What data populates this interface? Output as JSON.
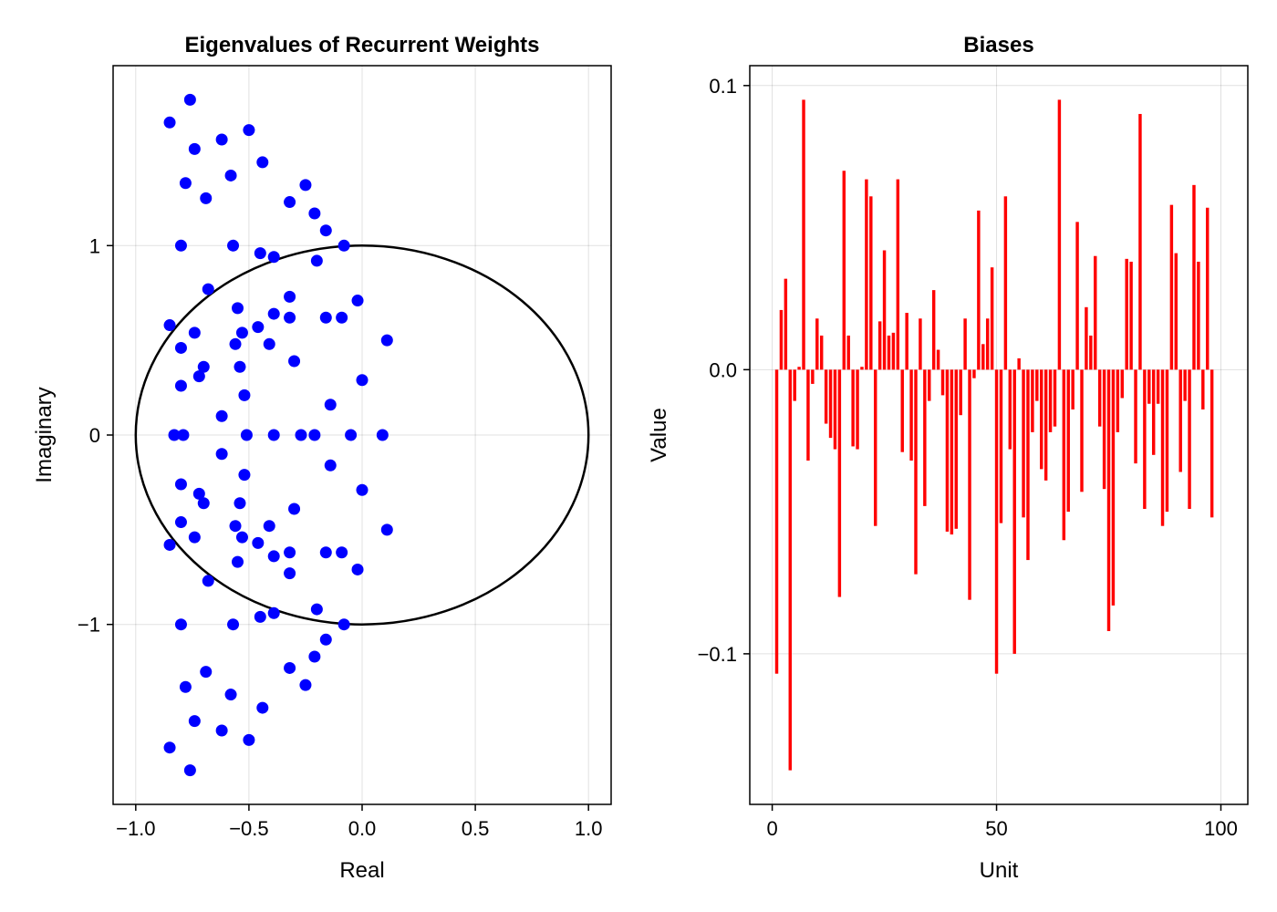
{
  "chart_data": [
    {
      "type": "scatter",
      "title": "Eigenvalues of Recurrent Weights",
      "xlabel": "Real",
      "ylabel": "Imaginary",
      "xlim": [
        -1.1,
        1.1
      ],
      "ylim": [
        -1.95,
        1.95
      ],
      "xticks": [
        -1.0,
        -0.5,
        0.0,
        0.5,
        1.0
      ],
      "xtick_labels": [
        "−1.0",
        "−0.5",
        "0.0",
        "0.5",
        "1.0"
      ],
      "yticks": [
        -1,
        0,
        1
      ],
      "ytick_labels": [
        "−1",
        "0",
        "1"
      ],
      "grid": true,
      "point_color": "#0000ff",
      "circle_color": "#000000",
      "unit_circle": {
        "center": [
          0,
          0
        ],
        "radius": 1
      },
      "points_upper": [
        [
          -0.85,
          1.65
        ],
        [
          -0.76,
          1.77
        ],
        [
          -0.74,
          1.51
        ],
        [
          -0.62,
          1.56
        ],
        [
          -0.5,
          1.61
        ],
        [
          -0.78,
          1.33
        ],
        [
          -0.69,
          1.25
        ],
        [
          -0.58,
          1.37
        ],
        [
          -0.44,
          1.44
        ],
        [
          -0.32,
          1.23
        ],
        [
          -0.25,
          1.32
        ],
        [
          -0.21,
          1.17
        ],
        [
          -0.16,
          1.08
        ],
        [
          -0.8,
          1.0
        ],
        [
          -0.57,
          1.0
        ],
        [
          -0.45,
          0.96
        ],
        [
          -0.39,
          0.94
        ],
        [
          -0.2,
          0.92
        ],
        [
          -0.08,
          1.0
        ],
        [
          -0.68,
          0.77
        ],
        [
          -0.55,
          0.67
        ],
        [
          -0.32,
          0.73
        ],
        [
          -0.02,
          0.71
        ],
        [
          -0.85,
          0.58
        ],
        [
          -0.74,
          0.54
        ],
        [
          -0.53,
          0.54
        ],
        [
          -0.46,
          0.57
        ],
        [
          -0.39,
          0.64
        ],
        [
          -0.32,
          0.62
        ],
        [
          -0.16,
          0.62
        ],
        [
          -0.09,
          0.62
        ],
        [
          0.11,
          0.5
        ],
        [
          -0.8,
          0.46
        ],
        [
          -0.56,
          0.48
        ],
        [
          -0.41,
          0.48
        ],
        [
          -0.7,
          0.36
        ],
        [
          -0.54,
          0.36
        ],
        [
          -0.3,
          0.39
        ],
        [
          -0.72,
          0.31
        ],
        [
          -0.8,
          0.26
        ],
        [
          -0.52,
          0.21
        ],
        [
          0.0,
          0.29
        ],
        [
          -0.14,
          0.16
        ],
        [
          -0.62,
          0.1
        ]
      ],
      "points_real": [
        -0.83,
        -0.79,
        -0.51,
        -0.39,
        -0.27,
        -0.21,
        -0.05,
        0.09
      ]
    },
    {
      "type": "bar",
      "title": "Biases",
      "xlabel": "Unit",
      "ylabel": "Value",
      "xlim": [
        -5,
        106
      ],
      "ylim": [
        -0.153,
        0.107
      ],
      "xticks": [
        0,
        50,
        100
      ],
      "xtick_labels": [
        "0",
        "50",
        "100"
      ],
      "yticks": [
        -0.1,
        0.0,
        0.1
      ],
      "ytick_labels": [
        "−0.1",
        "0.0",
        "0.1"
      ],
      "grid": true,
      "bar_color": "#ff0000",
      "x_start": 1,
      "values": [
        -0.107,
        0.021,
        0.032,
        -0.141,
        -0.011,
        0.001,
        0.095,
        -0.032,
        -0.005,
        0.018,
        0.012,
        -0.019,
        -0.024,
        -0.028,
        -0.08,
        0.07,
        0.012,
        -0.027,
        -0.028,
        0.001,
        0.067,
        0.061,
        -0.055,
        0.017,
        0.042,
        0.012,
        0.013,
        0.067,
        -0.029,
        0.02,
        -0.032,
        -0.072,
        0.018,
        -0.048,
        -0.011,
        0.028,
        0.007,
        -0.009,
        -0.057,
        -0.058,
        -0.056,
        -0.016,
        0.018,
        -0.081,
        -0.003,
        0.056,
        0.009,
        0.018,
        0.036,
        -0.107,
        -0.054,
        0.061,
        -0.028,
        -0.1,
        0.004,
        -0.052,
        -0.067,
        -0.022,
        -0.011,
        -0.035,
        -0.039,
        -0.022,
        -0.02,
        0.095,
        -0.06,
        -0.05,
        -0.014,
        0.052,
        -0.043,
        0.022,
        0.012,
        0.04,
        -0.02,
        -0.042,
        -0.092,
        -0.083,
        -0.022,
        -0.01,
        0.039,
        0.038,
        -0.033,
        0.09,
        -0.049,
        -0.012,
        -0.03,
        -0.012,
        -0.055,
        -0.05,
        0.058,
        0.041,
        -0.036,
        -0.011,
        -0.049,
        0.065,
        0.038,
        -0.014,
        0.057,
        -0.052
      ]
    }
  ]
}
